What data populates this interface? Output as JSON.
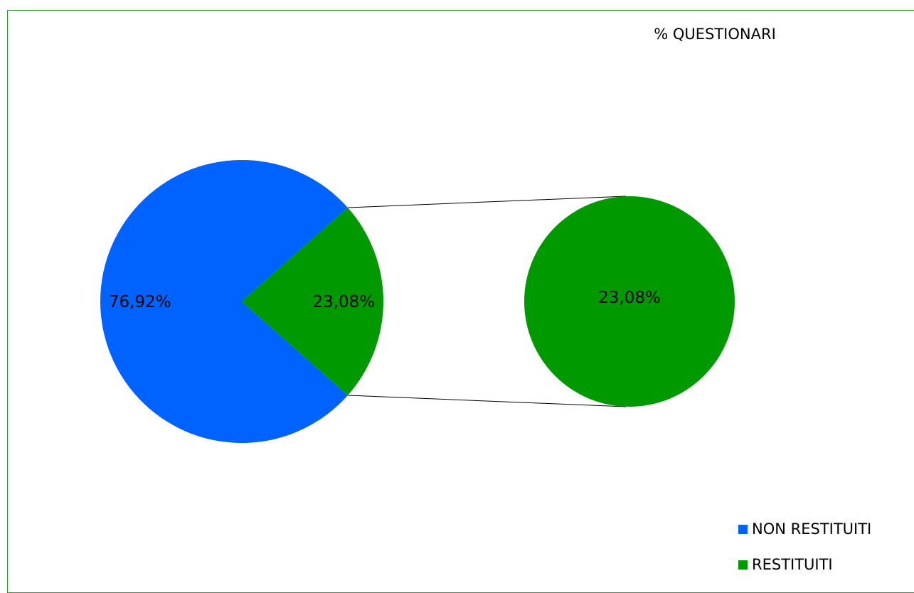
{
  "chart_data": {
    "type": "pie",
    "subtype": "pie-of-pie",
    "title": "% QUESTIONARI",
    "slices": [
      {
        "name": "NON RESTITUITI",
        "value": 76.92,
        "label": "76,92%",
        "color": "#0062ff"
      },
      {
        "name": "RESTITUITI",
        "value": 23.08,
        "label": "23,08%",
        "color": "#009900"
      }
    ],
    "secondary_pie": [
      {
        "name": "RESTITUITI",
        "value": 23.08,
        "label": "23,08%",
        "color": "#009900"
      }
    ],
    "legend_position": "bottom-right",
    "frame_color": "#2e9a2e",
    "connector_color": "#000000"
  }
}
